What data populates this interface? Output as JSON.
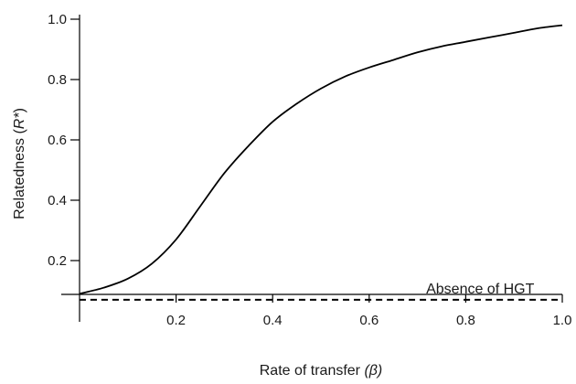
{
  "chart_data": {
    "type": "line",
    "title": "",
    "xlabel": {
      "main": "Rate of transfer ",
      "symbol": "(β)"
    },
    "ylabel": {
      "main": "Relatedness (",
      "symbol": "R*",
      "close": ")"
    },
    "xlim": [
      0,
      1.0
    ],
    "ylim": [
      0,
      1.0
    ],
    "x_ticks": [
      "0.2",
      "0.4",
      "0.6",
      "0.8",
      "1.0"
    ],
    "y_ticks": [
      "0.2",
      "0.4",
      "0.6",
      "0.8",
      "1.0"
    ],
    "grid": false,
    "legend": "none",
    "series": [
      {
        "style": "solid",
        "color": "#000000",
        "x": [
          0.0,
          0.05,
          0.1,
          0.15,
          0.2,
          0.25,
          0.3,
          0.35,
          0.4,
          0.45,
          0.5,
          0.55,
          0.6,
          0.65,
          0.7,
          0.75,
          0.8,
          0.85,
          0.9,
          0.95,
          1.0
        ],
        "y": [
          0.09,
          0.11,
          0.14,
          0.19,
          0.27,
          0.38,
          0.49,
          0.58,
          0.66,
          0.72,
          0.77,
          0.81,
          0.84,
          0.865,
          0.89,
          0.91,
          0.925,
          0.94,
          0.955,
          0.97,
          0.98
        ]
      },
      {
        "style": "dashed",
        "color": "#000000",
        "x": [
          0.0,
          1.0
        ],
        "y": [
          0.07,
          0.07
        ]
      }
    ],
    "annotations": [
      {
        "text": "Absence of HGT",
        "x": 0.83,
        "y": 0.1
      }
    ]
  }
}
